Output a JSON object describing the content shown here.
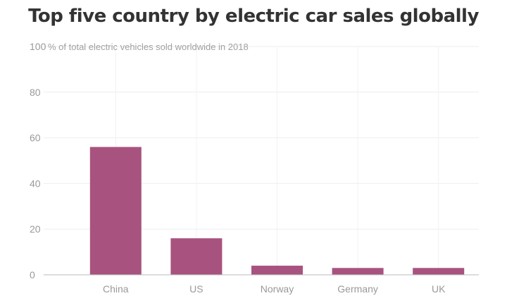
{
  "chart_data": {
    "type": "bar",
    "title": "Top five country by electric car sales globally",
    "subtitle": "% of total electric vehicles sold worldwide in 2018",
    "categories": [
      "China",
      "US",
      "Norway",
      "Germany",
      "UK"
    ],
    "values": [
      56,
      16,
      4,
      3,
      3
    ],
    "ylim": [
      0,
      100
    ],
    "yticks": [
      0,
      20,
      40,
      60,
      80,
      100
    ],
    "grid": true,
    "bar_color": "#a8537f"
  }
}
